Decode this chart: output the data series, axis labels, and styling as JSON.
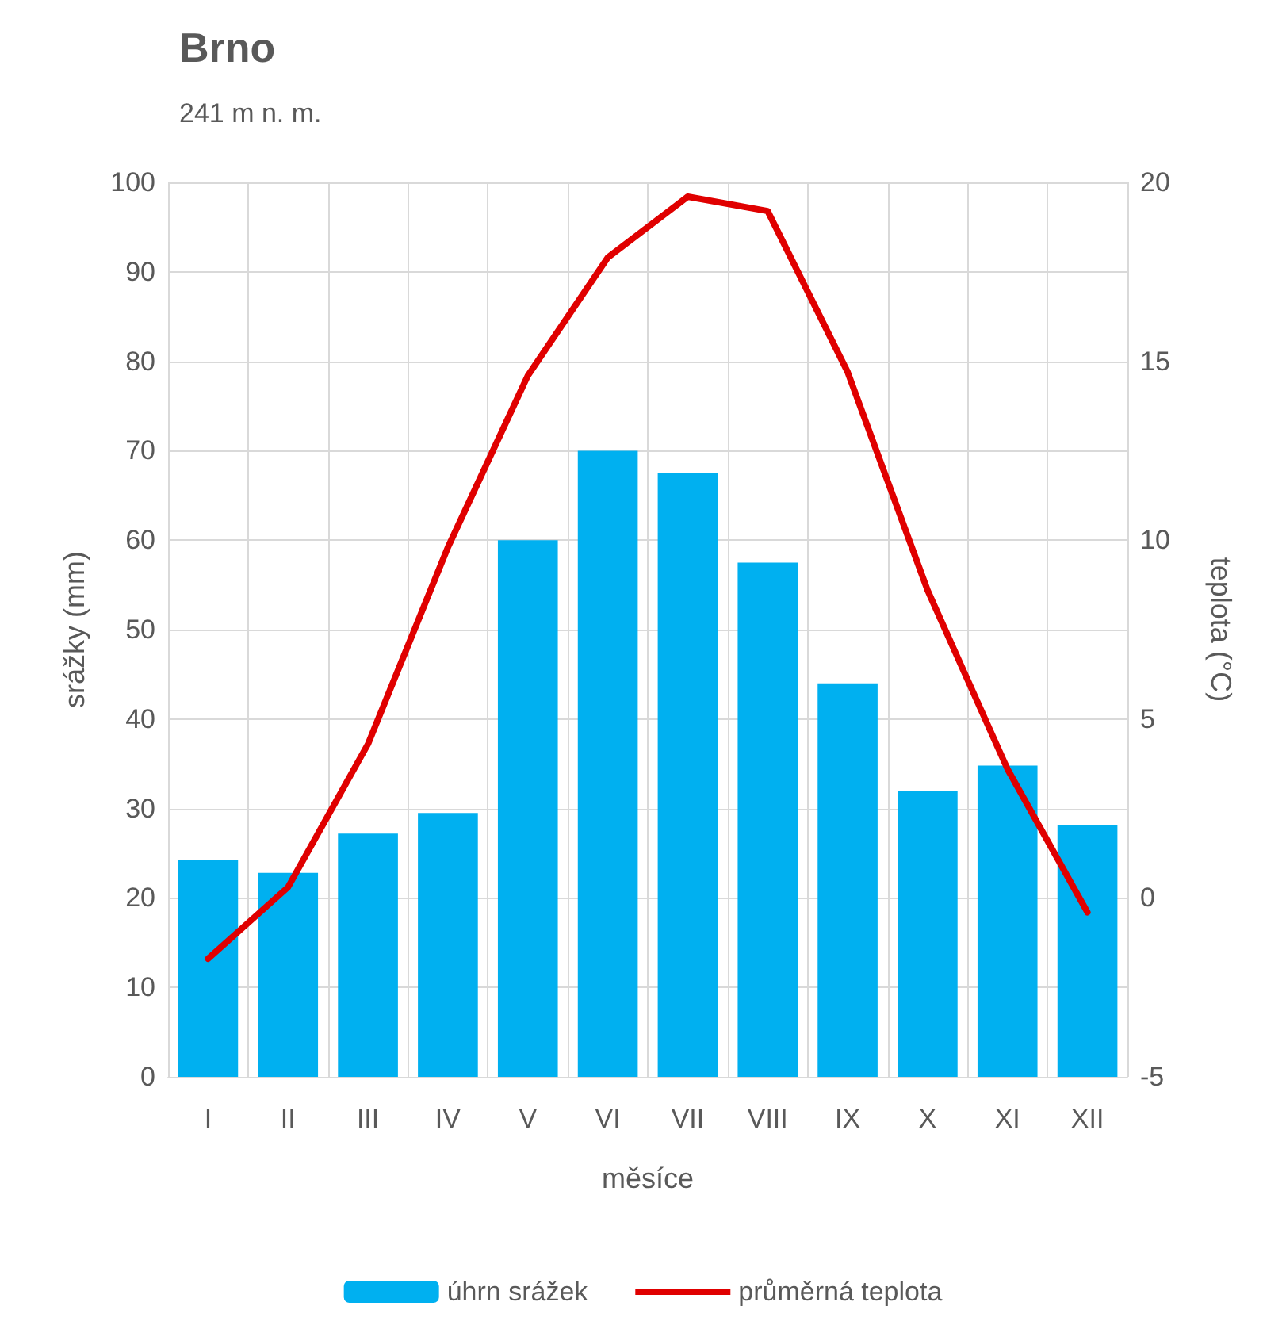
{
  "chart_data": {
    "type": "bar",
    "title": "Brno",
    "subtitle": "241 m n. m.",
    "xlabel": "měsíce",
    "ylabel": "srážky (mm)",
    "y2label": "teplota (°C)",
    "categories": [
      "I",
      "II",
      "III",
      "IV",
      "V",
      "VI",
      "VII",
      "VIII",
      "IX",
      "X",
      "XI",
      "XII"
    ],
    "series": [
      {
        "name": "úhrn srážek",
        "color": "#00b0f0",
        "values": [
          24.2,
          22.8,
          27.2,
          29.5,
          60,
          70,
          67.5,
          57.5,
          44,
          32,
          34.8,
          28.2
        ]
      },
      {
        "name": "průměrná teplota",
        "type": "line",
        "axis": "y2",
        "color": "#e00000",
        "values": [
          -1.7,
          0.3,
          4.3,
          9.8,
          14.6,
          17.9,
          19.6,
          19.2,
          14.7,
          8.6,
          3.6,
          -0.4
        ]
      }
    ],
    "ylim": [
      0,
      100
    ],
    "yticks": [
      0,
      10,
      20,
      30,
      40,
      50,
      60,
      70,
      80,
      90,
      100
    ],
    "y2lim": [
      -5,
      20
    ],
    "y2ticks": [
      -5,
      0,
      5,
      10,
      15,
      20
    ],
    "grid": true,
    "legend": "bottom",
    "marker": "none",
    "line_style": "solid"
  }
}
